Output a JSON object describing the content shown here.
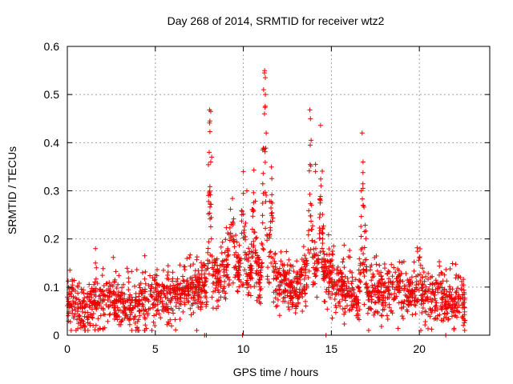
{
  "chart_data": {
    "type": "scatter",
    "title": "Day 268 of 2014, SRMTID for receiver wtz2",
    "xlabel": "GPS time / hours",
    "ylabel": "SRMTID / TECUs",
    "xlim": [
      0,
      24
    ],
    "ylim": [
      0,
      0.6
    ],
    "xticks": [
      0,
      5,
      10,
      15,
      20
    ],
    "xtick_labels": [
      "0",
      "5",
      "10",
      "15",
      "20"
    ],
    "yticks": [
      0,
      0.1,
      0.2,
      0.3,
      0.4,
      0.5,
      0.6
    ],
    "ytick_labels": [
      "0",
      "0.1",
      "0.2",
      "0.3",
      "0.4",
      "0.5",
      "0.6"
    ],
    "grid": true,
    "marker": "plus",
    "series_color": "#ee0000",
    "series": [
      {
        "name": "SRMTID",
        "profile": [
          {
            "x": 0.0,
            "y": 0.065
          },
          {
            "x": 1.0,
            "y": 0.055
          },
          {
            "x": 2.0,
            "y": 0.075
          },
          {
            "x": 3.0,
            "y": 0.065
          },
          {
            "x": 4.0,
            "y": 0.07
          },
          {
            "x": 5.0,
            "y": 0.085
          },
          {
            "x": 6.0,
            "y": 0.08
          },
          {
            "x": 7.0,
            "y": 0.09
          },
          {
            "x": 7.8,
            "y": 0.1
          },
          {
            "x": 8.5,
            "y": 0.12
          },
          {
            "x": 9.0,
            "y": 0.13
          },
          {
            "x": 9.5,
            "y": 0.145
          },
          {
            "x": 10.0,
            "y": 0.12
          },
          {
            "x": 10.5,
            "y": 0.13
          },
          {
            "x": 11.0,
            "y": 0.12
          },
          {
            "x": 11.5,
            "y": 0.14
          },
          {
            "x": 12.0,
            "y": 0.105
          },
          {
            "x": 12.8,
            "y": 0.09
          },
          {
            "x": 13.5,
            "y": 0.12
          },
          {
            "x": 14.0,
            "y": 0.15
          },
          {
            "x": 14.8,
            "y": 0.13
          },
          {
            "x": 15.5,
            "y": 0.1
          },
          {
            "x": 16.5,
            "y": 0.09
          },
          {
            "x": 17.5,
            "y": 0.095
          },
          {
            "x": 18.5,
            "y": 0.09
          },
          {
            "x": 19.5,
            "y": 0.085
          },
          {
            "x": 20.5,
            "y": 0.075
          },
          {
            "x": 21.5,
            "y": 0.07
          },
          {
            "x": 22.6,
            "y": 0.065
          }
        ],
        "bursts": [
          {
            "x": 8.1,
            "height": 0.38,
            "width": 0.1
          },
          {
            "x": 9.3,
            "height": 0.1,
            "width": 0.2
          },
          {
            "x": 10.0,
            "height": 0.22,
            "width": 0.12
          },
          {
            "x": 10.6,
            "height": 0.17,
            "width": 0.12
          },
          {
            "x": 11.2,
            "height": 0.42,
            "width": 0.1
          },
          {
            "x": 11.6,
            "height": 0.2,
            "width": 0.1
          },
          {
            "x": 13.8,
            "height": 0.28,
            "width": 0.1
          },
          {
            "x": 14.4,
            "height": 0.22,
            "width": 0.1
          },
          {
            "x": 16.75,
            "height": 0.32,
            "width": 0.08
          },
          {
            "x": 16.9,
            "height": 0.1,
            "width": 0.1
          },
          {
            "x": 20.0,
            "height": 0.05,
            "width": 0.15
          },
          {
            "x": 21.2,
            "height": 0.06,
            "width": 0.1
          }
        ],
        "outliers": [
          {
            "x": 1.6,
            "y": 0.18
          },
          {
            "x": 1.6,
            "y": 0.15
          },
          {
            "x": 1.65,
            "y": 0.14
          },
          {
            "x": 4.4,
            "y": 0.165
          },
          {
            "x": 8.15,
            "y": 0.465
          },
          {
            "x": 8.1,
            "y": 0.445
          },
          {
            "x": 8.2,
            "y": 0.37
          },
          {
            "x": 8.15,
            "y": 0.36
          },
          {
            "x": 10.0,
            "y": 0.34
          },
          {
            "x": 10.2,
            "y": 0.3
          },
          {
            "x": 11.2,
            "y": 0.545
          },
          {
            "x": 11.25,
            "y": 0.535
          },
          {
            "x": 11.15,
            "y": 0.51
          },
          {
            "x": 11.25,
            "y": 0.5
          },
          {
            "x": 11.2,
            "y": 0.46
          },
          {
            "x": 11.3,
            "y": 0.42
          },
          {
            "x": 11.1,
            "y": 0.385
          },
          {
            "x": 13.85,
            "y": 0.405
          },
          {
            "x": 13.8,
            "y": 0.395
          },
          {
            "x": 14.1,
            "y": 0.355
          },
          {
            "x": 14.1,
            "y": 0.34
          },
          {
            "x": 16.75,
            "y": 0.42
          },
          {
            "x": 16.8,
            "y": 0.36
          },
          {
            "x": 16.7,
            "y": 0.3
          },
          {
            "x": 16.8,
            "y": 0.27
          },
          {
            "x": 7.8,
            "y": 0.0
          },
          {
            "x": 7.9,
            "y": 0.0
          },
          {
            "x": 9.95,
            "y": 0.0
          },
          {
            "x": 14.7,
            "y": 0.0
          },
          {
            "x": 21.5,
            "y": 0.0
          }
        ],
        "point_count": 2200,
        "noise_scale": 0.028
      }
    ]
  }
}
